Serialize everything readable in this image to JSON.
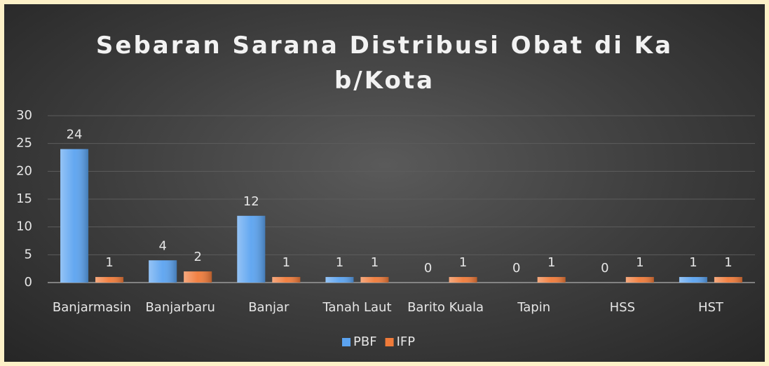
{
  "chart_data": {
    "type": "bar",
    "title": "Sebaran Sarana Distribusi Obat di Kab/Kota",
    "categories": [
      "Banjarmasin",
      "Banjarbaru",
      "Banjar",
      "Tanah Laut",
      "Barito Kuala",
      "Tapin",
      "HSS",
      "HST"
    ],
    "series": [
      {
        "name": "PBF",
        "color": "#5ba3f0",
        "values": [
          24,
          4,
          12,
          1,
          0,
          0,
          0,
          1
        ]
      },
      {
        "name": "IFP",
        "color": "#f07b3a",
        "values": [
          1,
          2,
          1,
          1,
          1,
          1,
          1,
          1
        ]
      }
    ],
    "ylim": [
      0,
      30
    ],
    "yticks": [
      0,
      5,
      10,
      15,
      20,
      25,
      30
    ],
    "grid": true,
    "legend": "bottom"
  }
}
